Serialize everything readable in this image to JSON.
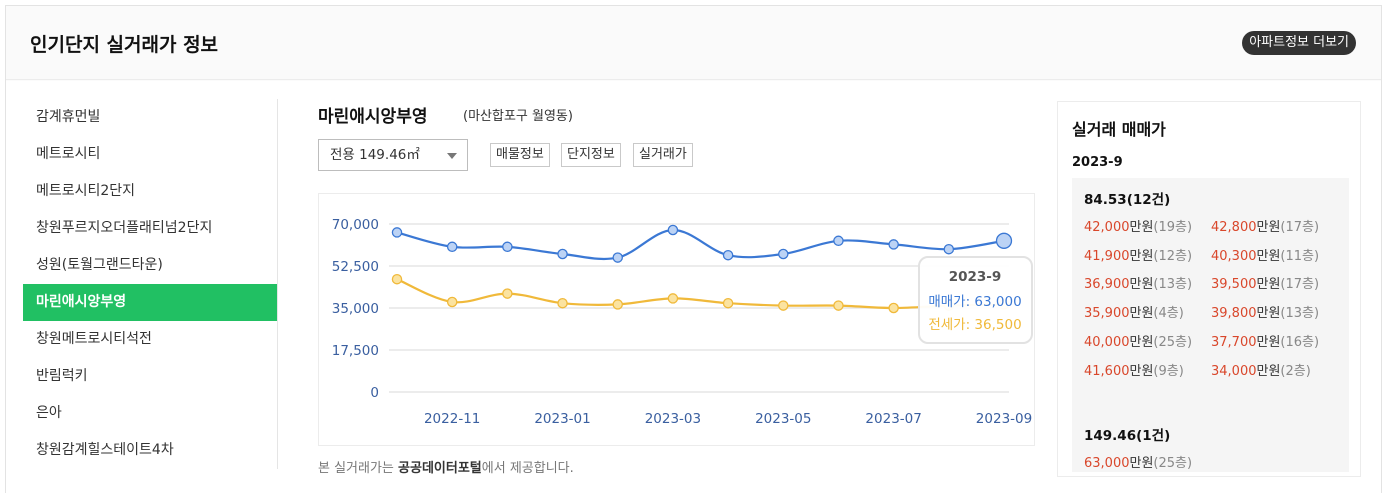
{
  "header": {
    "title": "인기단지 실거래가 정보",
    "more_button": "아파트정보 더보기"
  },
  "sidebar": {
    "items": [
      {
        "label": "감계휴먼빌",
        "active": false
      },
      {
        "label": "메트로시티",
        "active": false
      },
      {
        "label": "메트로시티2단지",
        "active": false
      },
      {
        "label": "창원푸르지오더플래티넘2단지",
        "active": false
      },
      {
        "label": "성원(토월그랜드타운)",
        "active": false
      },
      {
        "label": "마린애시앙부영",
        "active": true
      },
      {
        "label": "창원메트로시티석전",
        "active": false
      },
      {
        "label": "반림럭키",
        "active": false
      },
      {
        "label": "은아",
        "active": false
      },
      {
        "label": "창원감계힐스테이트4차",
        "active": false
      }
    ]
  },
  "main": {
    "apt_name": "마린애시앙부영",
    "apt_location": "(마산합포구 월영동)",
    "area_select": "전용 149.46㎡",
    "tabs": [
      "매물정보",
      "단지정보",
      "실거래가"
    ],
    "source_prefix": "본 실거래가는 ",
    "source_bold": "공공데이터포털",
    "source_suffix": "에서 제공합니다."
  },
  "chart_data": {
    "type": "line",
    "x": [
      "2022-10",
      "2022-11",
      "2022-12",
      "2023-01",
      "2023-02",
      "2023-03",
      "2023-04",
      "2023-05",
      "2023-06",
      "2023-07",
      "2023-08",
      "2023-09"
    ],
    "x_tick_labels": [
      "2022-11",
      "2023-01",
      "2023-03",
      "2023-05",
      "2023-07",
      "2023-09"
    ],
    "y_tick_labels": [
      "70,000",
      "52,500",
      "35,000",
      "17,500",
      "0"
    ],
    "ylim": [
      0,
      70000
    ],
    "grid": true,
    "series": [
      {
        "name": "매매가",
        "color": "#3b78d4",
        "values": [
          66500,
          60500,
          60500,
          57500,
          56000,
          67500,
          57000,
          57500,
          63000,
          61500,
          59500,
          63000
        ]
      },
      {
        "name": "전세가",
        "color": "#f0b93a",
        "values": [
          47000,
          37500,
          41000,
          37000,
          36500,
          39000,
          37000,
          36000,
          36000,
          35000,
          36000,
          36500
        ]
      }
    ],
    "tooltip": {
      "title": "2023-9",
      "sale_label": "매매가:",
      "sale_value": "63,000",
      "jeonse_label": "전세가:",
      "jeonse_value": "36,500"
    }
  },
  "deals_panel": {
    "title": "실거래 매매가",
    "month": "2023-9",
    "groups": [
      {
        "title": "84.53(12건)",
        "deals": [
          {
            "price": "42,000",
            "unit": "만원",
            "floor": "(19층)"
          },
          {
            "price": "42,800",
            "unit": "만원",
            "floor": "(17층)"
          },
          {
            "price": "41,900",
            "unit": "만원",
            "floor": "(12층)"
          },
          {
            "price": "40,300",
            "unit": "만원",
            "floor": "(11층)"
          },
          {
            "price": "36,900",
            "unit": "만원",
            "floor": "(13층)"
          },
          {
            "price": "39,500",
            "unit": "만원",
            "floor": "(17층)"
          },
          {
            "price": "35,900",
            "unit": "만원",
            "floor": "(4층)"
          },
          {
            "price": "39,800",
            "unit": "만원",
            "floor": "(13층)"
          },
          {
            "price": "40,000",
            "unit": "만원",
            "floor": "(25층)"
          },
          {
            "price": "37,700",
            "unit": "만원",
            "floor": "(16층)"
          },
          {
            "price": "41,600",
            "unit": "만원",
            "floor": "(9층)"
          },
          {
            "price": "34,000",
            "unit": "만원",
            "floor": "(2층)"
          }
        ]
      },
      {
        "title": "149.46(1건)",
        "deals": [
          {
            "price": "63,000",
            "unit": "만원",
            "floor": "(25층)"
          }
        ]
      }
    ]
  },
  "colors": {
    "accent": "#21c063",
    "price_red": "#d9472b",
    "sale_blue": "#3b78d4",
    "jeonse_yellow": "#f0b93a"
  }
}
